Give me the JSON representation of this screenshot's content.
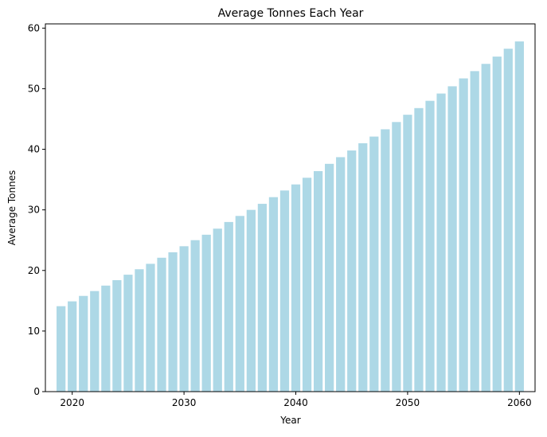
{
  "chart_data": {
    "type": "bar",
    "title": "Average Tonnes Each Year",
    "xlabel": "Year",
    "ylabel": "Average Tonnes",
    "x": [
      2019,
      2020,
      2021,
      2022,
      2023,
      2024,
      2025,
      2026,
      2027,
      2028,
      2029,
      2030,
      2031,
      2032,
      2033,
      2034,
      2035,
      2036,
      2037,
      2038,
      2039,
      2040,
      2041,
      2042,
      2043,
      2044,
      2045,
      2046,
      2047,
      2048,
      2049,
      2050,
      2051,
      2052,
      2053,
      2054,
      2055,
      2056,
      2057,
      2058,
      2059,
      2060
    ],
    "values": [
      14.1,
      14.9,
      15.8,
      16.6,
      17.5,
      18.4,
      19.3,
      20.2,
      21.1,
      22.1,
      23.0,
      24.0,
      25.0,
      25.9,
      26.9,
      28.0,
      29.0,
      30.0,
      31.0,
      32.1,
      33.2,
      34.2,
      35.3,
      36.4,
      37.6,
      38.7,
      39.8,
      41.0,
      42.1,
      43.3,
      44.5,
      45.7,
      46.8,
      48.0,
      49.2,
      50.4,
      51.7,
      52.9,
      54.1,
      55.3,
      56.6,
      57.8
    ],
    "xticks": [
      2020,
      2030,
      2040,
      2050,
      2060
    ],
    "yticks": [
      0,
      10,
      20,
      30,
      40,
      50,
      60
    ],
    "xlim": [
      2017.6,
      2061.4
    ],
    "ylim": [
      0,
      60.7
    ],
    "bar_color": "#add8e6",
    "grid": false,
    "legend": "none"
  }
}
